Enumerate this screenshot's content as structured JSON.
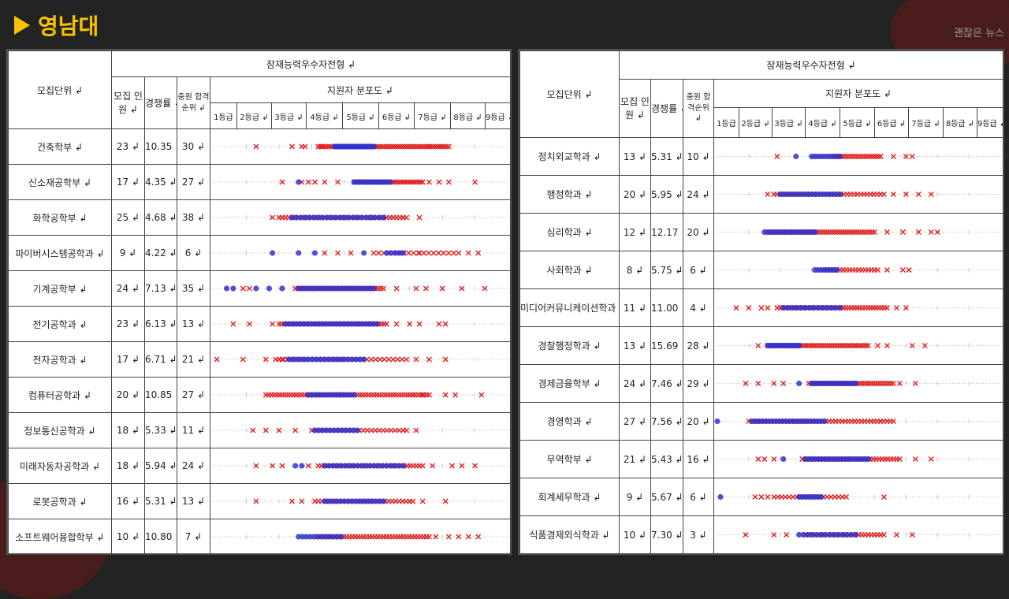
{
  "header": {
    "title": "영남대",
    "watermark": "괜찮은 뉴스"
  },
  "left": {
    "th_group": "잠재능력우수자전형 ↲",
    "th_unit": "모집단위 ↲",
    "th_quota": "모집 인원 ↲",
    "th_rate": "경쟁률 ↲",
    "th_rank": "충원 합격순위 ↲",
    "th_dist": "지원자 분포도 ↲",
    "grades": [
      "1등급",
      "2등급 ↲",
      "3등급 ↲",
      "4등급 ↲",
      "5등급 ↲",
      "6등급 ↲",
      "7등급 ↲",
      "8등급 ↲",
      "9등급 ↲"
    ],
    "rows": [
      {
        "name": "건축학부 ↲",
        "quota": "23 ↲",
        "rate": "10.35 ↲",
        "rank": "30 ↲",
        "dist": {
          "blue": [
            [
              3.7,
              4.9,
              26
            ]
          ],
          "red": [
            [
              3.2,
              7.2,
              60
            ]
          ],
          "xs": [
            1.3,
            2.4,
            2.7,
            2.8,
            3.3,
            6.6,
            7.0
          ]
        }
      },
      {
        "name": "신소재공학부 ↲",
        "quota": "17 ↲",
        "rate": "4.35 ↲",
        "rank": "27 ↲",
        "dist": {
          "blue": [
            [
              2.6,
              2.6,
              1
            ],
            [
              4.3,
              5.4,
              14
            ]
          ],
          "red": [
            [
              4.3,
              6.4,
              34
            ]
          ],
          "xs": [
            2.1,
            2.7,
            2.9,
            3.1,
            3.4,
            3.8,
            6.6,
            6.9,
            7.2,
            8.0
          ]
        }
      },
      {
        "name": "화학공학부 ↲",
        "quota": "25 ↲",
        "rate": "4.68 ↲",
        "rank": "38 ↲",
        "dist": {
          "blue": [
            [
              2.4,
              5.2,
              22
            ]
          ],
          "red": [
            [
              2.0,
              5.9,
              40
            ]
          ],
          "xs": [
            1.8,
            2.1,
            5.4,
            5.8,
            6.3
          ]
        }
      },
      {
        "name": "파이버시스템공학과 ↲",
        "quota": "9 ↲",
        "rate": "4.22 ↲",
        "rank": "6 ↲",
        "dist": {
          "blue": [
            [
              1.8,
              1.8,
              1
            ],
            [
              2.6,
              2.6,
              1
            ],
            [
              3.1,
              3.1,
              1
            ],
            [
              4.6,
              4.6,
              1
            ],
            [
              5.3,
              5.8,
              5
            ]
          ],
          "red": [
            [
              4.9,
              7.5,
              18
            ]
          ],
          "xs": [
            3.4,
            3.8,
            4.2,
            6.3,
            7.8,
            8.1
          ]
        }
      },
      {
        "name": "기계공학부 ↲",
        "quota": "24 ↲",
        "rate": "7.13 ↲",
        "rank": "35 ↲",
        "dist": {
          "blue": [
            [
              0.4,
              0.6,
              2
            ],
            [
              1.3,
              1.3,
              1
            ],
            [
              1.7,
              2.1,
              2
            ],
            [
              2.6,
              4.9,
              22
            ]
          ],
          "red": [
            [
              2.5,
              5.2,
              34
            ]
          ],
          "xs": [
            0.9,
            1.1,
            5.6,
            6.2,
            6.5,
            7.0,
            7.6,
            8.3
          ]
        }
      },
      {
        "name": "전기공학과 ↲",
        "quota": "23 ↲",
        "rate": "6.13 ↲",
        "rank": "13 ↲",
        "dist": {
          "blue": [
            [
              2.2,
              5.0,
              26
            ]
          ],
          "red": [
            [
              2.0,
              5.3,
              40
            ]
          ],
          "xs": [
            0.6,
            1.1,
            1.8,
            5.6,
            6.0,
            6.3,
            6.9,
            7.1
          ]
        }
      },
      {
        "name": "전자공학과 ↲",
        "quota": "17 ↲",
        "rate": "6.71 ↲",
        "rank": "21 ↲",
        "dist": {
          "blue": [
            [
              2.3,
              4.6,
              20
            ]
          ],
          "red": [
            [
              2.0,
              5.9,
              30
            ]
          ],
          "xs": [
            0.1,
            0.9,
            1.6,
            1.9,
            2.1,
            6.2,
            6.6,
            7.1
          ]
        }
      },
      {
        "name": "컴퓨터공학과 ↲",
        "quota": "20 ↲",
        "rate": "10.85 ↲",
        "rank": "27 ↲",
        "dist": {
          "blue": [
            [
              2.9,
              4.3,
              14
            ]
          ],
          "red": [
            [
              1.6,
              6.6,
              60
            ]
          ],
          "xs": [
            6.1,
            6.4,
            7.1,
            7.4,
            8.2
          ]
        }
      },
      {
        "name": "정보통신공학과 ↲",
        "quota": "18 ↲",
        "rate": "5.33 ↲",
        "rank": "11 ↲",
        "dist": {
          "blue": [
            [
              3.1,
              4.4,
              12
            ]
          ],
          "red": [
            [
              3.0,
              5.8,
              24
            ]
          ],
          "xs": [
            1.2,
            1.6,
            2.0,
            2.5,
            5.9,
            6.2
          ]
        }
      },
      {
        "name": "미래자동차공학과 ↲",
        "quota": "18 ↲",
        "rate": "5.94 ↲",
        "rank": "24 ↲",
        "dist": {
          "blue": [
            [
              2.5,
              2.7,
              2
            ],
            [
              3.4,
              5.8,
              20
            ]
          ],
          "red": [
            [
              3.2,
              6.4,
              34
            ]
          ],
          "xs": [
            1.3,
            1.8,
            2.1,
            2.9,
            6.7,
            7.3,
            7.6,
            8.0
          ]
        }
      },
      {
        "name": "로봇공학과 ↲",
        "quota": "16 ↲",
        "rate": "5.31 ↲",
        "rank": "13 ↲",
        "dist": {
          "blue": [
            [
              3.4,
              5.2,
              16
            ]
          ],
          "red": [
            [
              3.1,
              6.0,
              28
            ]
          ],
          "xs": [
            1.3,
            2.4,
            2.7,
            6.1,
            6.4,
            7.1
          ]
        }
      },
      {
        "name": "소프트웨어융합학부 ↲",
        "quota": "10 ↲",
        "rate": "10.80 ↲",
        "rank": "7 ↲",
        "dist": {
          "blue": [
            [
              2.6,
              3.9,
              12
            ]
          ],
          "red": [
            [
              3.2,
              6.6,
              40
            ]
          ],
          "xs": [
            6.8,
            7.2,
            7.5,
            7.8,
            8.1
          ]
        }
      }
    ]
  },
  "right": {
    "th_group": "잠재능력우수자전형 ↲",
    "th_unit": "모집단위 ↲",
    "th_quota": "모집 인원 ↲",
    "th_rate": "경쟁률 ↲",
    "th_rank": "충원 합격순위 ↲",
    "th_dist": "지원자 분포도 ↲",
    "grades": [
      "1등급",
      "2등급 ↲",
      "3등급 ↲",
      "4등급 ↲",
      "5등급 ↲",
      "6등급 ↲",
      "7등급 ↲",
      "8등급 ↲",
      "9등급 ↲"
    ],
    "rows": [
      {
        "name": "정치외교학과 ↲",
        "quota": "13 ↲",
        "rate": "5.31 ↲",
        "rank": "10 ↲",
        "dist": {
          "blue": [
            [
              2.5,
              2.5,
              1
            ],
            [
              3.0,
              3.9,
              10
            ]
          ],
          "red": [
            [
              3.7,
              5.2,
              20
            ]
          ],
          "xs": [
            1.9,
            5.6,
            6.0,
            6.2
          ]
        }
      },
      {
        "name": "행정학과 ↲",
        "quota": "20 ↲",
        "rate": "5.95 ↲",
        "rank": "24 ↲",
        "dist": {
          "blue": [
            [
              2.0,
              3.9,
              18
            ]
          ],
          "red": [
            [
              1.8,
              5.3,
              34
            ]
          ],
          "xs": [
            1.6,
            1.8,
            5.6,
            6.0,
            6.4,
            6.8
          ]
        }
      },
      {
        "name": "심리학과 ↲",
        "quota": "12 ↲",
        "rate": "12.17 ↲",
        "rank": "20 ↲",
        "dist": {
          "blue": [
            [
              1.5,
              3.1,
              16
            ]
          ],
          "red": [
            [
              1.6,
              5.0,
              44
            ]
          ],
          "xs": [
            5.4,
            5.9,
            6.4,
            6.8,
            7.0
          ]
        }
      },
      {
        "name": "사회학과 ↲",
        "quota": "8 ↲",
        "rate": "5.75 ↲",
        "rank": "6 ↲",
        "dist": {
          "blue": [
            [
              3.1,
              3.8,
              8
            ]
          ],
          "red": [
            [
              3.4,
              5.1,
              18
            ]
          ],
          "xs": [
            5.4,
            5.9,
            6.1
          ]
        }
      },
      {
        "name": "미디어커뮤니케이션학과 ↲",
        "quota": "11 ↲",
        "rate": "11.00 ↲",
        "rank": "4 ↲",
        "dist": {
          "blue": [
            [
              2.1,
              3.9,
              14
            ]
          ],
          "red": [
            [
              2.0,
              5.4,
              40
            ]
          ],
          "xs": [
            0.6,
            1.0,
            1.4,
            1.6,
            1.9,
            5.7,
            6.0
          ]
        }
      },
      {
        "name": "경찰행정학과 ↲",
        "quota": "13 ↲",
        "rate": "15.69 ↲",
        "rank": "28 ↲",
        "dist": {
          "blue": [
            [
              1.6,
              2.6,
              14
            ]
          ],
          "red": [
            [
              1.7,
              4.8,
              44
            ]
          ],
          "xs": [
            1.3,
            1.6,
            5.1,
            5.4,
            6.2,
            6.6
          ]
        }
      },
      {
        "name": "경제금융학부 ↲",
        "quota": "24 ↲",
        "rate": "7.46 ↲",
        "rank": "29 ↲",
        "dist": {
          "blue": [
            [
              2.6,
              2.6,
              1
            ],
            [
              3.0,
              4.4,
              16
            ]
          ],
          "red": [
            [
              2.9,
              5.6,
              36
            ]
          ],
          "xs": [
            0.9,
            1.3,
            1.8,
            2.1,
            5.8,
            6.3
          ]
        }
      },
      {
        "name": "경영학과 ↲",
        "quota": "27 ↲",
        "rate": "7.56 ↲",
        "rank": "20 ↲",
        "dist": {
          "blue": [
            [
              0.0,
              0.0,
              1
            ],
            [
              1.1,
              3.4,
              22
            ]
          ],
          "red": [
            [
              1.0,
              5.6,
              46
            ]
          ],
          "xs": []
        }
      },
      {
        "name": "무역학부 ↲",
        "quota": "21 ↲",
        "rate": "5.43 ↲",
        "rank": "16 ↲",
        "dist": {
          "blue": [
            [
              2.1,
              2.1,
              1
            ],
            [
              2.8,
              4.8,
              20
            ]
          ],
          "red": [
            [
              2.7,
              5.8,
              34
            ]
          ],
          "xs": [
            1.3,
            1.5,
            1.8,
            6.3,
            6.8
          ]
        }
      },
      {
        "name": "회계세무학과 ↲",
        "quota": "9 ↲",
        "rate": "5.67 ↲",
        "rank": "6 ↲",
        "dist": {
          "blue": [
            [
              0.1,
              0.1,
              1
            ],
            [
              2.6,
              3.3,
              8
            ]
          ],
          "red": [
            [
              1.8,
              4.1,
              20
            ]
          ],
          "xs": [
            1.2,
            1.4,
            1.6,
            5.3
          ]
        }
      },
      {
        "name": "식품경제외식학과 ↲",
        "quota": "10 ↲",
        "rate": "7.30 ↲",
        "rank": "3 ↲",
        "dist": {
          "blue": [
            [
              2.6,
              4.4,
              14
            ]
          ],
          "red": [
            [
              2.8,
              5.3,
              26
            ]
          ],
          "xs": [
            0.9,
            1.8,
            2.2,
            5.7,
            6.2
          ]
        }
      }
    ]
  },
  "colors": {
    "blue": "#3333cc",
    "red": "#e02020",
    "grid": "#bbbbbb"
  }
}
